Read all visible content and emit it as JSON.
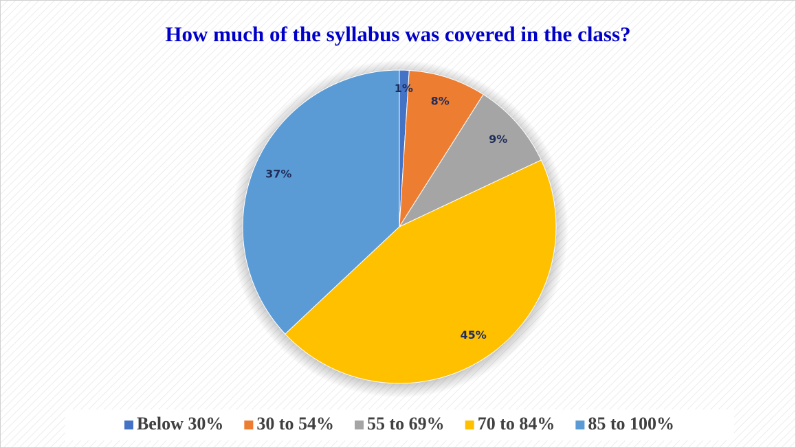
{
  "chart_data": {
    "type": "pie",
    "title": "How much of the syllabus was covered in the class?",
    "categories": [
      "Below 30%",
      "30 to 54%",
      "55 to 69%",
      "70 to 84%",
      "85 to 100%"
    ],
    "values": [
      1,
      8,
      9,
      45,
      37
    ],
    "value_labels": [
      "1%",
      "8%",
      "9%",
      "45%",
      "37%"
    ],
    "colors": [
      "#4472c4",
      "#ed7d31",
      "#a5a5a5",
      "#ffc000",
      "#5b9bd5"
    ],
    "legend": "bottom"
  }
}
